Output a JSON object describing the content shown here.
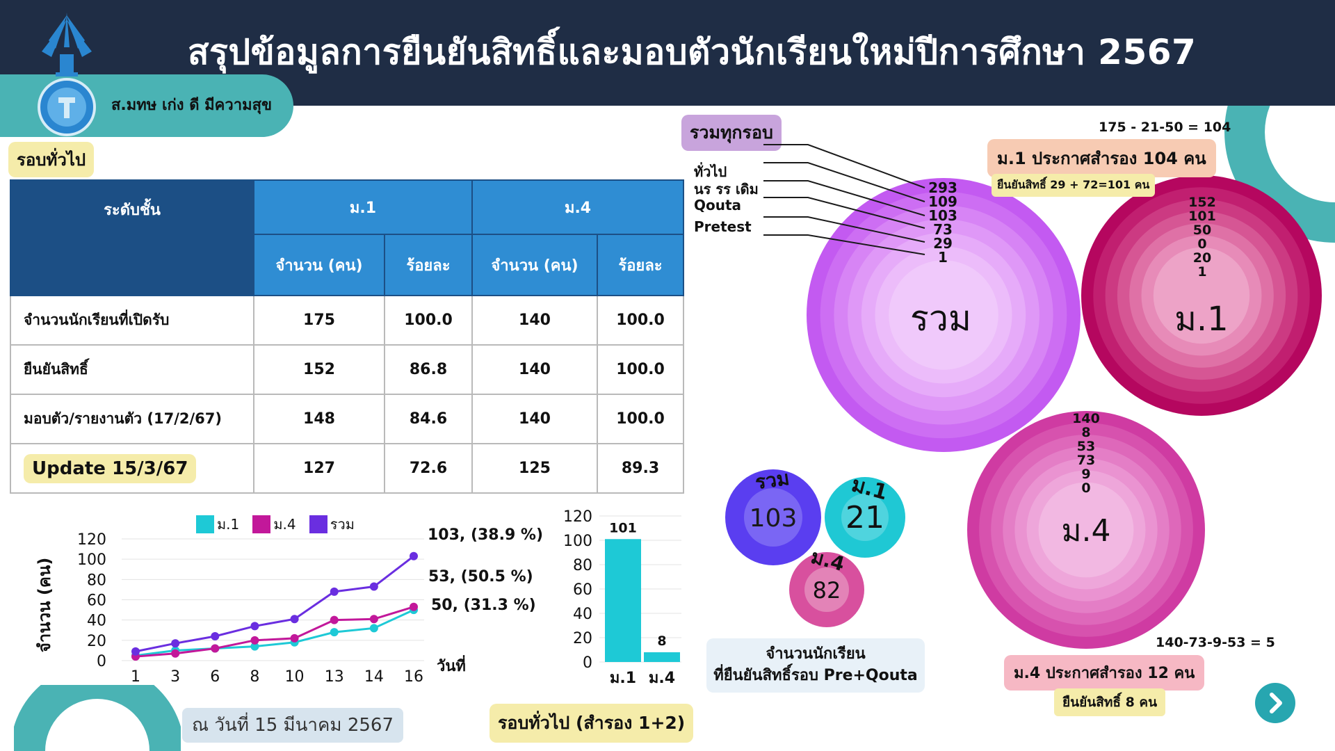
{
  "header": {
    "title": "สรุปข้อมูลการยืนยันสิทธิ์และมอบตัวนักเรียนใหม่ปีการศึกษา 2567",
    "motto": "ส.มทษ เก่ง ดี มีความสุข"
  },
  "round_label": "รอบทั่วไป",
  "table": {
    "col_level": "ระดับชั้น",
    "col_m1": "ม.1",
    "col_m4": "ม.4",
    "col_count": "จำนวน (คน)",
    "col_pct": "ร้อยละ",
    "rows": [
      {
        "label": "จำนวนนักเรียนที่เปิดรับ",
        "m1_count": "175",
        "m1_pct": "100.0",
        "m4_count": "140",
        "m4_pct": "100.0"
      },
      {
        "label": "ยืนยันสิทธิ์",
        "m1_count": "152",
        "m1_pct": "86.8",
        "m4_count": "140",
        "m4_pct": "100.0"
      },
      {
        "label": "มอบตัว/รายงานตัว (17/2/67)",
        "m1_count": "148",
        "m1_pct": "84.6",
        "m4_count": "140",
        "m4_pct": "100.0"
      },
      {
        "label": "Update 15/3/67",
        "m1_count": "127",
        "m1_pct": "72.6",
        "m4_count": "125",
        "m4_pct": "89.3"
      }
    ]
  },
  "chart_data": [
    {
      "type": "line",
      "ylabel": "จำนวน (คน)",
      "xlabel": "วันที่",
      "x": [
        "1",
        "3",
        "6",
        "8",
        "10",
        "13",
        "14",
        "16"
      ],
      "yticks": [
        "0",
        "20",
        "40",
        "60",
        "80",
        "100",
        "120"
      ],
      "ylim": [
        0,
        120
      ],
      "grid": true,
      "legend_position": "top",
      "series": [
        {
          "name": "ม.1",
          "color": "#1ec9d6",
          "values": [
            5,
            10,
            12,
            14,
            18,
            28,
            32,
            50
          ]
        },
        {
          "name": "ม.4",
          "color": "#c2189a",
          "values": [
            4,
            7,
            12,
            20,
            22,
            40,
            41,
            53
          ]
        },
        {
          "name": "รวม",
          "color": "#6a2ee0",
          "values": [
            9,
            17,
            24,
            34,
            41,
            68,
            73,
            103
          ]
        }
      ],
      "annotations": [
        "103, (38.9 %)",
        "53, (50.5 %)",
        "50, (31.3 %)"
      ]
    },
    {
      "type": "bar",
      "categories": [
        "ม.1",
        "ม.4"
      ],
      "values": [
        101,
        8
      ],
      "value_labels": [
        "101",
        "8"
      ],
      "yticks": [
        "0",
        "20",
        "40",
        "60",
        "80",
        "100",
        "120"
      ],
      "ylim": [
        0,
        120
      ],
      "color": "#1ec9d6",
      "caption": "รอบทั่วไป (สำรอง 1+2)"
    }
  ],
  "date_text": "ณ วันที่  15 มีนาคม  2567",
  "all_rounds": {
    "label": "รวมทุกรอบ",
    "round_names": [
      "ทั่วไป",
      "นร รร เดิม",
      "Qouta",
      "Pretest"
    ],
    "total_label": "รวม",
    "total_values": [
      "293",
      "109",
      "103",
      "73",
      "29",
      "1"
    ],
    "m1_label": "ม.1",
    "m1_values": [
      "152",
      "101",
      "50",
      "0",
      "20",
      "1"
    ],
    "m4_label": "ม.4",
    "m4_values": [
      "140",
      "8",
      "53",
      "73",
      "9",
      "0"
    ]
  },
  "notes": {
    "m1_calc": "175 - 21-50 = 104",
    "m1_reserve": "ม.1    ประกาศสำรอง 104 คน",
    "m1_confirm": "ยืนยันสิทธิ์ 29 + 72=101 คน",
    "m4_calc": "140-73-9-53 = 5",
    "m4_reserve": "ม.4    ประกาศสำรอง 12 คน",
    "m4_confirm": "ยืนยันสิทธิ์ 8 คน"
  },
  "pre_quota": {
    "total_label": "รวม",
    "total_value": "103",
    "m1_label": "ม.1",
    "m1_value": "21",
    "m4_label": "ม.4",
    "m4_value": "82",
    "caption_line1": "จำนวนนักเรียน",
    "caption_line2": "ที่ยืนยันสิทธิ์รอบ Pre+Qouta"
  },
  "colors": {
    "header_bg": "#1f2d45",
    "teal": "#4ab3b4",
    "table_dark": "#1c4f85",
    "table_blue": "#2f8dd3",
    "purple": "#c15ef0",
    "crimson": "#b80a62",
    "magenta": "#cf3aa0"
  },
  "icons": {
    "next": "chevron-right-icon",
    "logo": "school-logo"
  }
}
